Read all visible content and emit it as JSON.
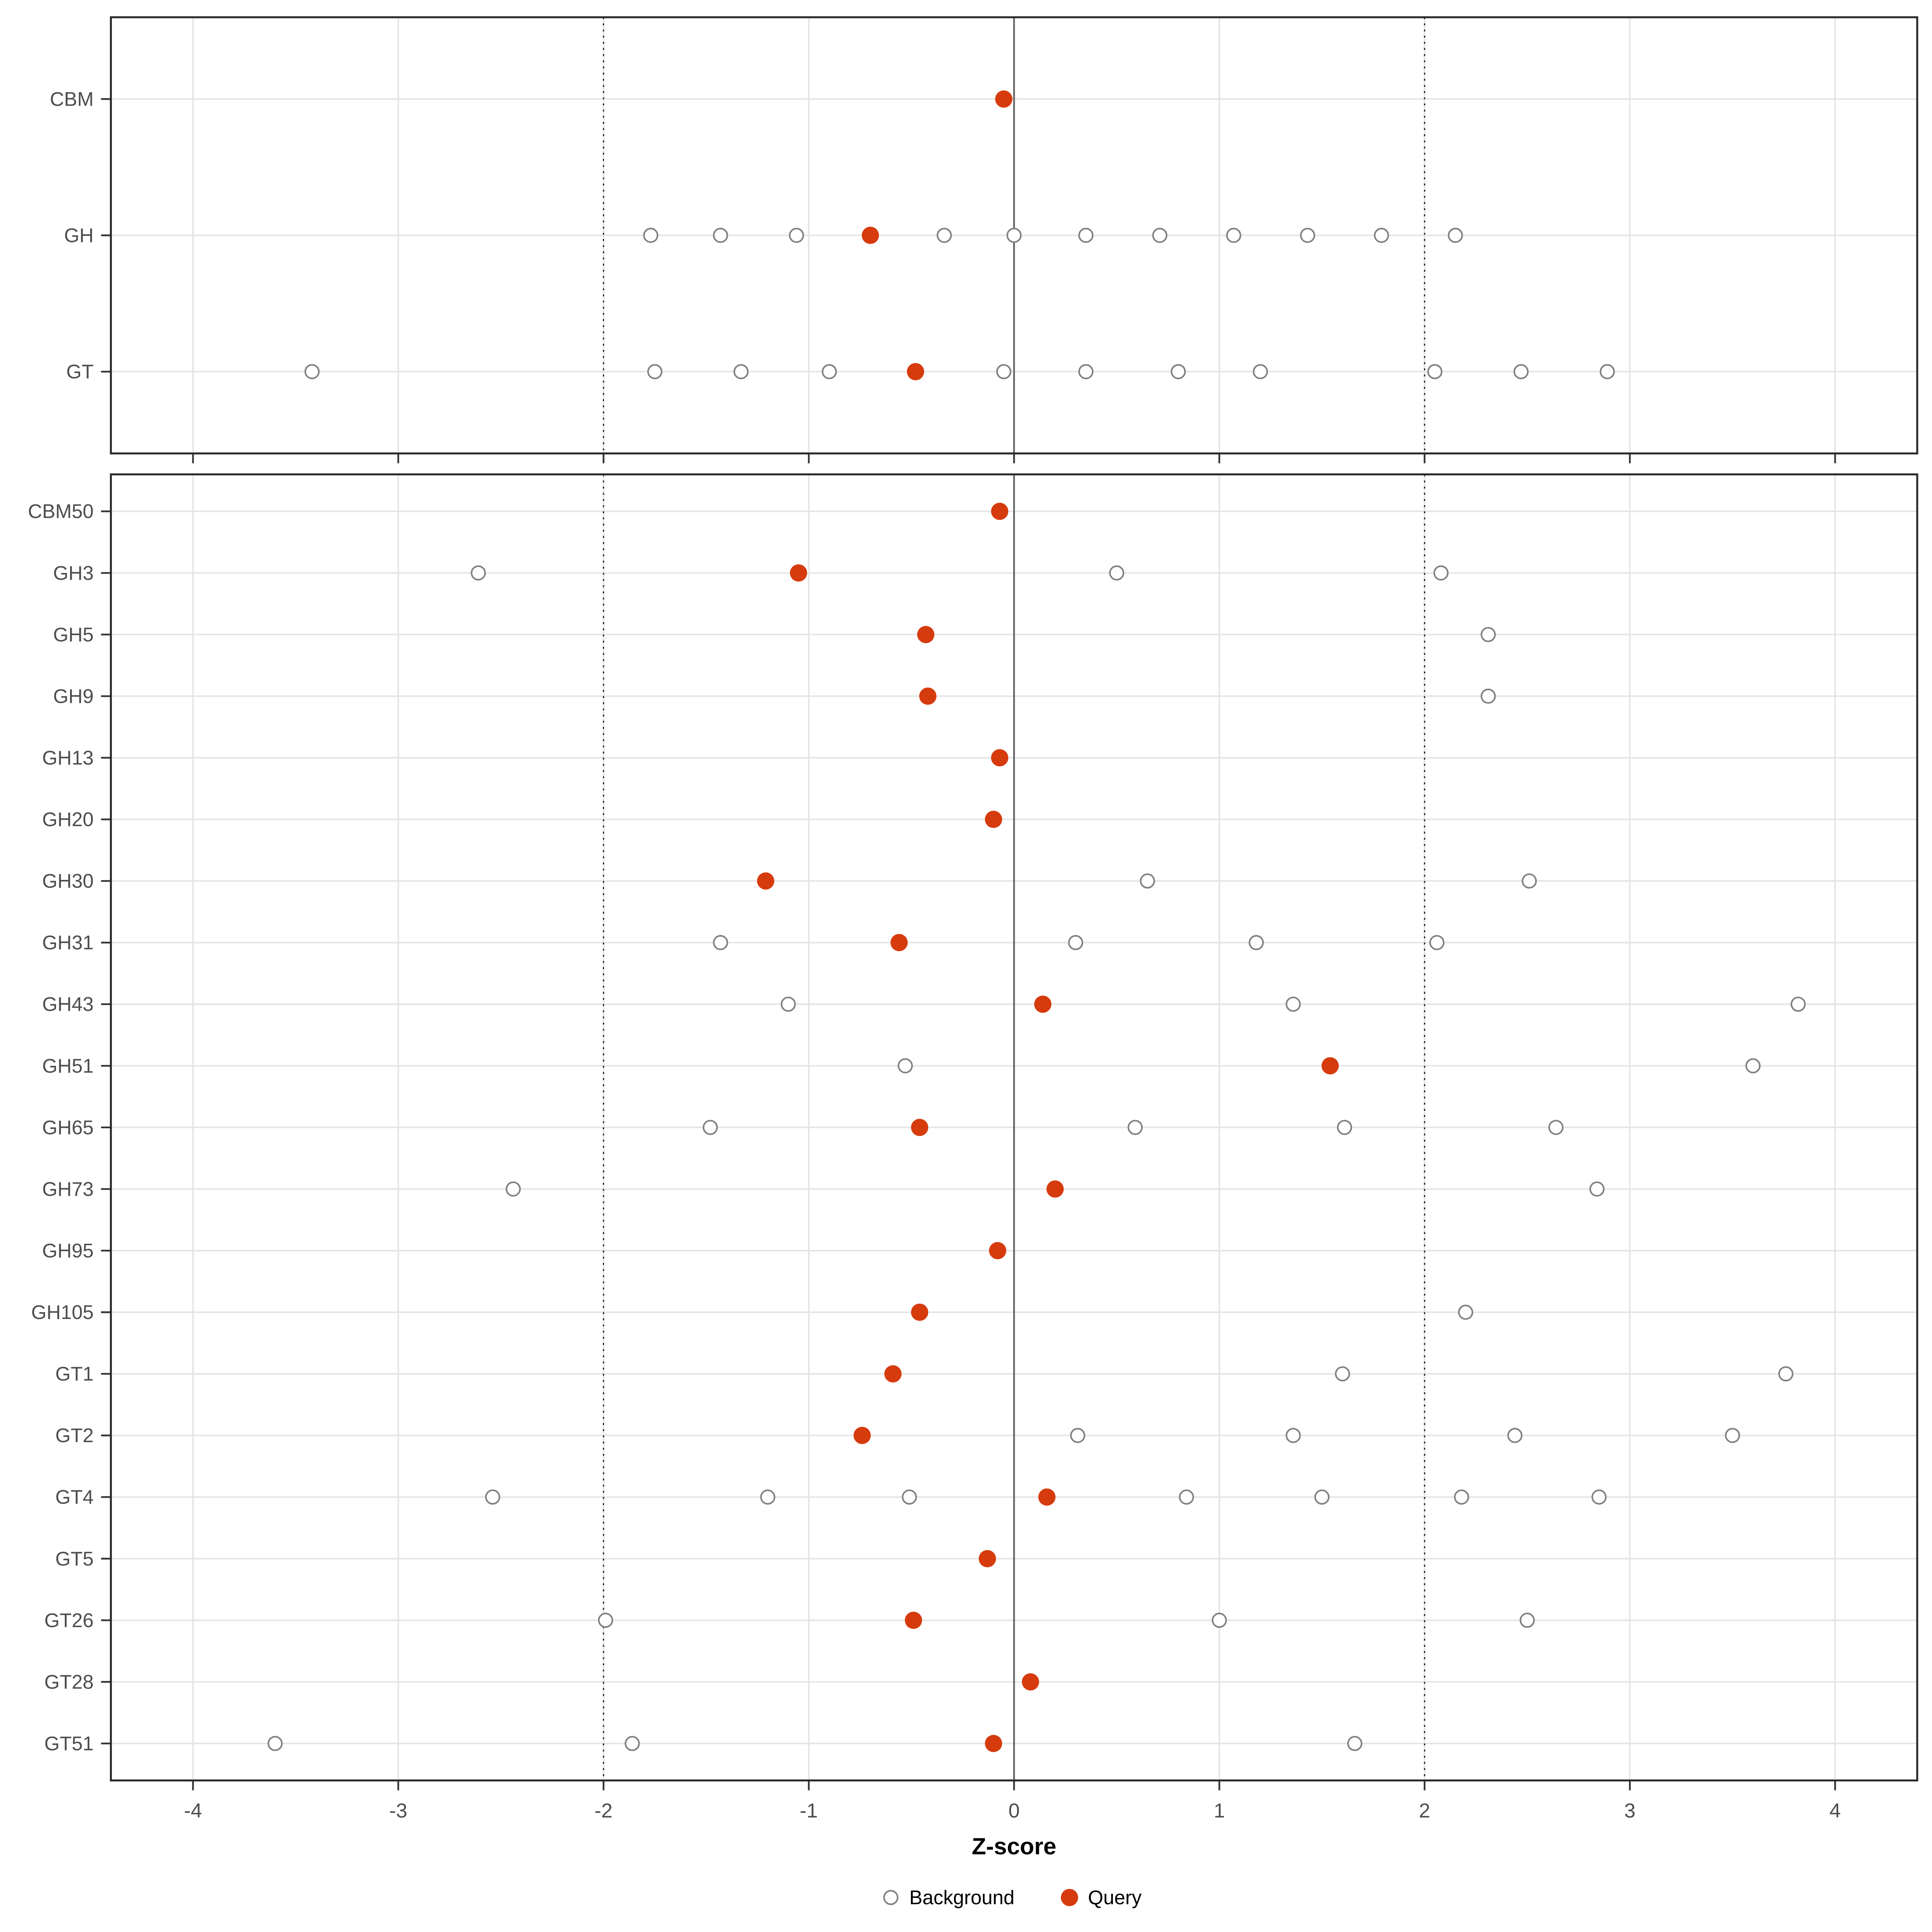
{
  "chart_data": {
    "type": "scatter",
    "title": "",
    "xlabel": "Z-score",
    "xlim": [
      -4.4,
      4.4
    ],
    "x_ticks": [
      -4,
      -3,
      -2,
      -1,
      0,
      1,
      2,
      3,
      4
    ],
    "reference_lines": {
      "solid_at": 0,
      "dotted_at": [
        -2,
        2
      ]
    },
    "legend": {
      "background_label": "Background",
      "query_label": "Query",
      "position": "bottom"
    },
    "colors": {
      "query": "#d63b0d",
      "background_stroke": "#808080",
      "background_fill": "#ffffff",
      "grid": "#e4e4e4",
      "panel_border": "#2b2b2b",
      "zero_line": "#5a5a5a",
      "dotted_line": "#1a1a1a",
      "tick_text": "#4d4d4d",
      "axis_label": "#000000"
    },
    "panels": [
      {
        "name": "family-summary",
        "rows": [
          {
            "label": "CBM",
            "query": -0.05,
            "background": []
          },
          {
            "label": "GH",
            "query": -0.7,
            "background": [
              -1.77,
              -1.43,
              -1.06,
              -0.34,
              0.0,
              0.35,
              0.71,
              1.07,
              1.43,
              1.79,
              2.15
            ]
          },
          {
            "label": "GT",
            "query": -0.48,
            "background": [
              -3.42,
              -1.75,
              -1.33,
              -0.9,
              -0.05,
              0.35,
              0.8,
              1.2,
              2.05,
              2.47,
              2.89
            ]
          }
        ]
      },
      {
        "name": "family-detail",
        "rows": [
          {
            "label": "CBM50",
            "query": -0.07,
            "background": []
          },
          {
            "label": "GH3",
            "query": -1.05,
            "background": [
              -2.61,
              0.5,
              2.08
            ]
          },
          {
            "label": "GH5",
            "query": -0.43,
            "background": [
              2.31
            ]
          },
          {
            "label": "GH9",
            "query": -0.42,
            "background": [
              2.31
            ]
          },
          {
            "label": "GH13",
            "query": -0.07,
            "background": []
          },
          {
            "label": "GH20",
            "query": -0.1,
            "background": []
          },
          {
            "label": "GH30",
            "query": -1.21,
            "background": [
              0.65,
              2.51
            ]
          },
          {
            "label": "GH31",
            "query": -0.56,
            "background": [
              -1.43,
              0.3,
              1.18,
              2.06
            ]
          },
          {
            "label": "GH43",
            "query": 0.14,
            "background": [
              -1.1,
              1.36,
              3.82
            ]
          },
          {
            "label": "GH51",
            "query": 1.54,
            "background": [
              -0.53,
              3.6
            ]
          },
          {
            "label": "GH65",
            "query": -0.46,
            "background": [
              -1.48,
              0.59,
              1.61,
              2.64
            ]
          },
          {
            "label": "GH73",
            "query": 0.2,
            "background": [
              -2.44,
              2.84
            ]
          },
          {
            "label": "GH95",
            "query": -0.08,
            "background": []
          },
          {
            "label": "GH105",
            "query": -0.46,
            "background": [
              2.2
            ]
          },
          {
            "label": "GT1",
            "query": -0.59,
            "background": [
              1.6,
              3.76
            ]
          },
          {
            "label": "GT2",
            "query": -0.74,
            "background": [
              0.31,
              1.36,
              2.44,
              3.5
            ]
          },
          {
            "label": "GT4",
            "query": 0.16,
            "background": [
              -2.54,
              -1.2,
              -0.51,
              0.84,
              1.5,
              2.18,
              2.85
            ]
          },
          {
            "label": "GT5",
            "query": -0.13,
            "background": []
          },
          {
            "label": "GT26",
            "query": -0.49,
            "background": [
              -1.99,
              1.0,
              2.5
            ]
          },
          {
            "label": "GT28",
            "query": 0.08,
            "background": []
          },
          {
            "label": "GT51",
            "query": -0.1,
            "background": [
              -3.6,
              -1.86,
              1.66
            ]
          }
        ]
      }
    ]
  }
}
